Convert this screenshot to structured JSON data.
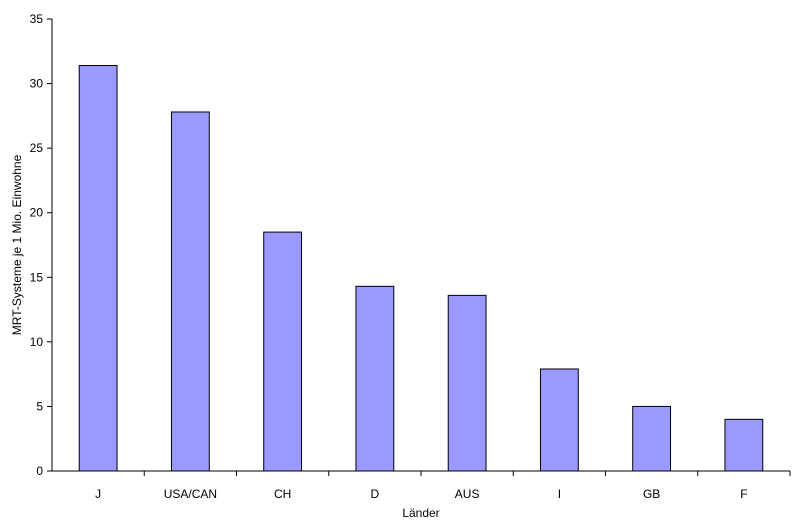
{
  "chart_data": {
    "type": "bar",
    "categories": [
      "J",
      "USA/CAN",
      "CH",
      "D",
      "AUS",
      "I",
      "GB",
      "F"
    ],
    "values": [
      31.4,
      27.8,
      18.5,
      14.3,
      13.6,
      7.9,
      5.0,
      4.0
    ],
    "xlabel": "Länder",
    "ylabel": "MRT-Systeme je 1 Mio. Einwohne",
    "ylim": [
      0,
      35
    ],
    "yticks": [
      0,
      5,
      10,
      15,
      20,
      25,
      30,
      35
    ],
    "grid": false,
    "legend": "none",
    "colors": {
      "bar_fill": "#9999ff",
      "bar_stroke": "#000000",
      "axis": "#000000"
    }
  }
}
